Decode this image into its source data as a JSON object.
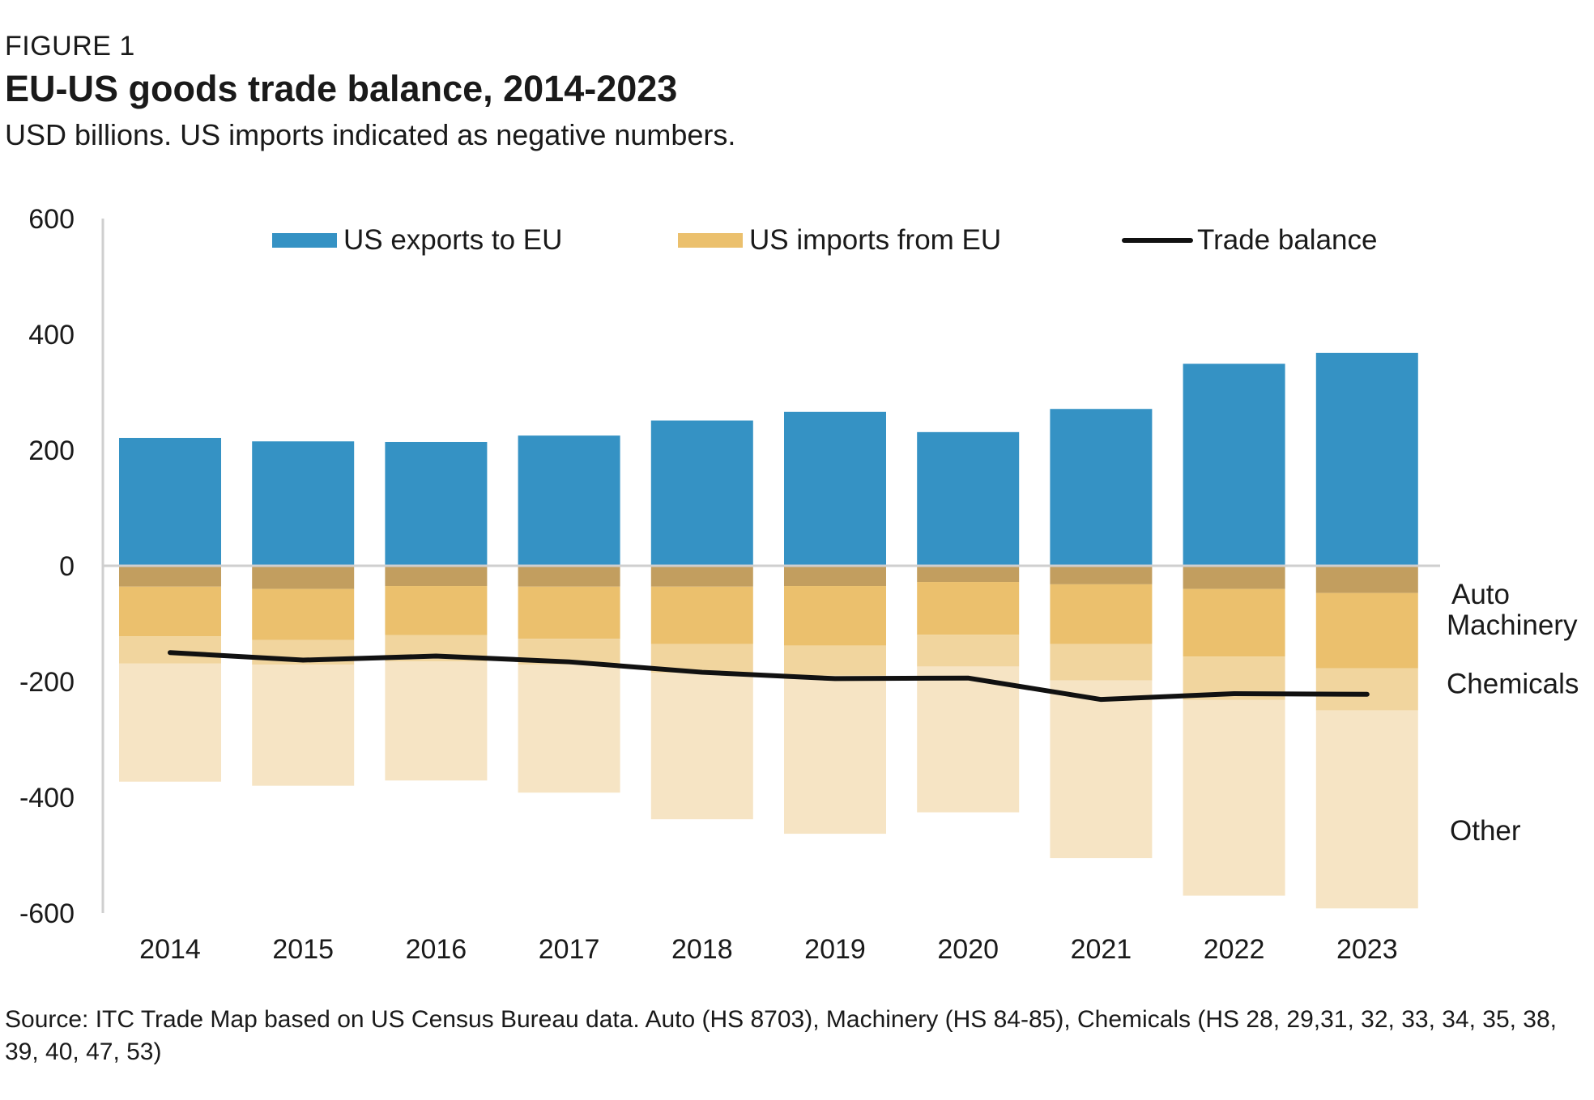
{
  "figure_label": "FIGURE 1",
  "title": "EU-US goods trade balance, 2014-2023",
  "subtitle": "USD billions. US imports indicated as negative numbers.",
  "source": "Source: ITC Trade Map based on US Census Bureau data. Auto (HS 8703), Machinery (HS 84-85), Chemicals (HS 28, 29,31, 32, 33, 34, 35, 38, 39, 40, 47, 53)",
  "chart_data": {
    "type": "bar",
    "stacked": true,
    "categories": [
      "2014",
      "2015",
      "2016",
      "2017",
      "2018",
      "2019",
      "2020",
      "2021",
      "2022",
      "2023"
    ],
    "ylim": [
      -600,
      600
    ],
    "yticks": [
      600,
      400,
      200,
      0,
      -200,
      -400,
      -600
    ],
    "ytick_labels": [
      "600",
      "400",
      "200",
      "0",
      "-200",
      "-400",
      "-600"
    ],
    "grid": false,
    "legend_position": "top",
    "legend": [
      {
        "label": "US exports to EU",
        "kind": "box",
        "color": "#3592C4"
      },
      {
        "label": "US imports from EU",
        "kind": "box",
        "color": "#EBC06D"
      },
      {
        "label": "Trade balance",
        "kind": "line",
        "color": "#111111"
      }
    ],
    "series": [
      {
        "key": "exports",
        "values": [
          221,
          215,
          214,
          225,
          251,
          266,
          231,
          271,
          349,
          368
        ],
        "color": "#3592C4"
      },
      {
        "key": "auto",
        "name": "Auto",
        "values": [
          -36,
          -40,
          -35,
          -36,
          -36,
          -35,
          -28,
          -32,
          -40,
          -47
        ],
        "color": "#C29E5F"
      },
      {
        "key": "machinery",
        "name": "Machinery",
        "values": [
          -86,
          -88,
          -85,
          -90,
          -99,
          -103,
          -91,
          -103,
          -117,
          -130
        ],
        "color": "#EBC06D"
      },
      {
        "key": "chemicals",
        "name": "Chemicals",
        "values": [
          -47,
          -43,
          -45,
          -45,
          -50,
          -52,
          -55,
          -63,
          -75,
          -73
        ],
        "color": "#F1D59E"
      },
      {
        "key": "other",
        "name": "Other",
        "values": [
          -204,
          -209,
          -206,
          -221,
          -253,
          -273,
          -252,
          -307,
          -338,
          -342
        ],
        "color": "#F6E4C4"
      }
    ],
    "trade_balance": [
      -150,
      -163,
      -156,
      -166,
      -184,
      -195,
      -194,
      -231,
      -221,
      -222
    ]
  }
}
